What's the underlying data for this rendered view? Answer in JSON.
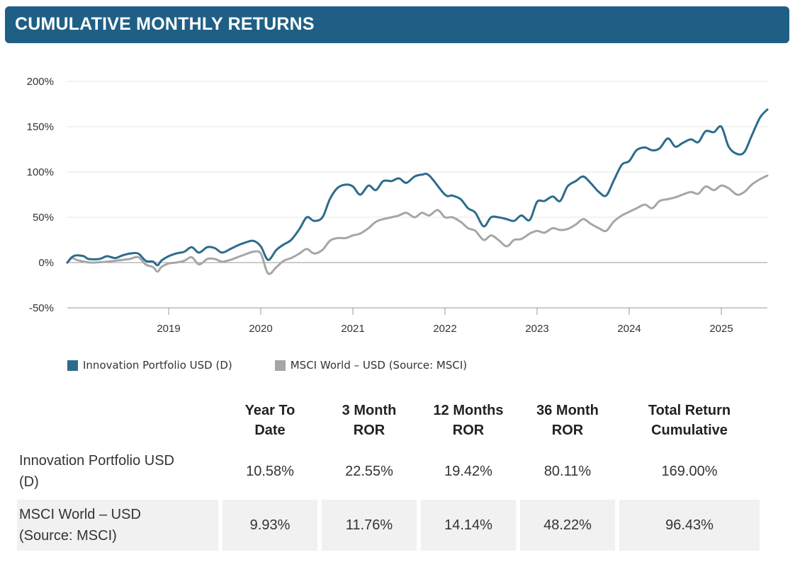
{
  "header": {
    "title": "CUMULATIVE MONTHLY RETURNS"
  },
  "colors": {
    "banner": "#1f5f85",
    "series_portfolio": "#2d6b8c",
    "series_benchmark": "#a6a6a6",
    "row_shade": "#f1f1f1"
  },
  "chart_data": {
    "type": "line",
    "title": "",
    "xlabel": "",
    "ylabel": "",
    "ylim": [
      -50,
      200
    ],
    "yticks": [
      -50,
      0,
      50,
      100,
      150,
      200
    ],
    "ytick_labels": [
      "-50%",
      "0%",
      "50%",
      "100%",
      "150%",
      "200%"
    ],
    "xlim": [
      2017.9,
      2025.5
    ],
    "xticks": [
      2019,
      2020,
      2021,
      2022,
      2023,
      2024,
      2025
    ],
    "xtick_labels": [
      "2019",
      "2020",
      "2021",
      "2022",
      "2023",
      "2024",
      "2025"
    ],
    "grid": "horizontal",
    "legend_position": "bottom-left",
    "series": [
      {
        "name": "Innovation Portfolio USD (D)",
        "color": "#2d6b8c",
        "points": [
          [
            2017.9,
            0
          ],
          [
            2017.95,
            6
          ],
          [
            2018.0,
            8
          ],
          [
            2018.08,
            7
          ],
          [
            2018.13,
            4
          ],
          [
            2018.25,
            4
          ],
          [
            2018.33,
            7
          ],
          [
            2018.42,
            5
          ],
          [
            2018.5,
            8
          ],
          [
            2018.58,
            10
          ],
          [
            2018.67,
            10
          ],
          [
            2018.75,
            2
          ],
          [
            2018.83,
            1
          ],
          [
            2018.88,
            -3
          ],
          [
            2018.92,
            2
          ],
          [
            2019.0,
            7
          ],
          [
            2019.08,
            10
          ],
          [
            2019.17,
            12
          ],
          [
            2019.25,
            17
          ],
          [
            2019.33,
            11
          ],
          [
            2019.42,
            17
          ],
          [
            2019.5,
            16
          ],
          [
            2019.58,
            11
          ],
          [
            2019.67,
            15
          ],
          [
            2019.75,
            19
          ],
          [
            2019.83,
            22
          ],
          [
            2019.92,
            24
          ],
          [
            2020.0,
            18
          ],
          [
            2020.08,
            3
          ],
          [
            2020.17,
            14
          ],
          [
            2020.25,
            20
          ],
          [
            2020.33,
            25
          ],
          [
            2020.42,
            37
          ],
          [
            2020.5,
            50
          ],
          [
            2020.58,
            46
          ],
          [
            2020.67,
            50
          ],
          [
            2020.75,
            70
          ],
          [
            2020.83,
            82
          ],
          [
            2020.92,
            86
          ],
          [
            2021.0,
            84
          ],
          [
            2021.08,
            75
          ],
          [
            2021.17,
            85
          ],
          [
            2021.25,
            80
          ],
          [
            2021.33,
            90
          ],
          [
            2021.42,
            90
          ],
          [
            2021.5,
            93
          ],
          [
            2021.58,
            88
          ],
          [
            2021.67,
            95
          ],
          [
            2021.75,
            97
          ],
          [
            2021.83,
            96
          ],
          [
            2022.0,
            75
          ],
          [
            2022.08,
            74
          ],
          [
            2022.17,
            70
          ],
          [
            2022.25,
            60
          ],
          [
            2022.33,
            55
          ],
          [
            2022.42,
            40
          ],
          [
            2022.5,
            50
          ],
          [
            2022.58,
            50
          ],
          [
            2022.67,
            48
          ],
          [
            2022.75,
            46
          ],
          [
            2022.83,
            52
          ],
          [
            2022.92,
            47
          ],
          [
            2023.0,
            67
          ],
          [
            2023.08,
            68
          ],
          [
            2023.17,
            73
          ],
          [
            2023.25,
            68
          ],
          [
            2023.33,
            84
          ],
          [
            2023.42,
            90
          ],
          [
            2023.5,
            95
          ],
          [
            2023.58,
            88
          ],
          [
            2023.67,
            78
          ],
          [
            2023.75,
            74
          ],
          [
            2023.83,
            90
          ],
          [
            2023.92,
            108
          ],
          [
            2024.0,
            112
          ],
          [
            2024.08,
            124
          ],
          [
            2024.17,
            127
          ],
          [
            2024.25,
            124
          ],
          [
            2024.33,
            126
          ],
          [
            2024.42,
            137
          ],
          [
            2024.5,
            128
          ],
          [
            2024.58,
            132
          ],
          [
            2024.67,
            136
          ],
          [
            2024.75,
            133
          ],
          [
            2024.83,
            145
          ],
          [
            2024.92,
            144
          ],
          [
            2025.0,
            150
          ],
          [
            2025.08,
            128
          ],
          [
            2025.17,
            120
          ],
          [
            2025.25,
            122
          ],
          [
            2025.33,
            140
          ],
          [
            2025.42,
            160
          ],
          [
            2025.5,
            169
          ]
        ]
      },
      {
        "name": "MSCI World – USD (Source: MSCI)",
        "color": "#a6a6a6",
        "points": [
          [
            2017.9,
            0
          ],
          [
            2017.95,
            5
          ],
          [
            2018.0,
            3
          ],
          [
            2018.08,
            1
          ],
          [
            2018.17,
            0
          ],
          [
            2018.33,
            1
          ],
          [
            2018.42,
            2
          ],
          [
            2018.5,
            3
          ],
          [
            2018.58,
            4
          ],
          [
            2018.67,
            6
          ],
          [
            2018.75,
            -2
          ],
          [
            2018.83,
            -5
          ],
          [
            2018.88,
            -10
          ],
          [
            2018.92,
            -5
          ],
          [
            2019.0,
            -1
          ],
          [
            2019.08,
            0
          ],
          [
            2019.17,
            2
          ],
          [
            2019.25,
            6
          ],
          [
            2019.33,
            -2
          ],
          [
            2019.42,
            4
          ],
          [
            2019.5,
            4
          ],
          [
            2019.58,
            1
          ],
          [
            2019.67,
            3
          ],
          [
            2019.75,
            6
          ],
          [
            2019.83,
            9
          ],
          [
            2019.92,
            12
          ],
          [
            2020.0,
            10
          ],
          [
            2020.08,
            -12
          ],
          [
            2020.17,
            -5
          ],
          [
            2020.25,
            2
          ],
          [
            2020.33,
            5
          ],
          [
            2020.42,
            10
          ],
          [
            2020.5,
            15
          ],
          [
            2020.58,
            10
          ],
          [
            2020.67,
            14
          ],
          [
            2020.75,
            24
          ],
          [
            2020.83,
            27
          ],
          [
            2020.92,
            27
          ],
          [
            2021.0,
            30
          ],
          [
            2021.08,
            32
          ],
          [
            2021.17,
            38
          ],
          [
            2021.25,
            45
          ],
          [
            2021.33,
            48
          ],
          [
            2021.42,
            50
          ],
          [
            2021.5,
            52
          ],
          [
            2021.58,
            55
          ],
          [
            2021.67,
            50
          ],
          [
            2021.75,
            55
          ],
          [
            2021.83,
            52
          ],
          [
            2021.92,
            58
          ],
          [
            2022.0,
            50
          ],
          [
            2022.08,
            50
          ],
          [
            2022.17,
            45
          ],
          [
            2022.25,
            38
          ],
          [
            2022.33,
            35
          ],
          [
            2022.42,
            25
          ],
          [
            2022.5,
            30
          ],
          [
            2022.58,
            25
          ],
          [
            2022.67,
            18
          ],
          [
            2022.75,
            25
          ],
          [
            2022.83,
            26
          ],
          [
            2022.92,
            32
          ],
          [
            2023.0,
            35
          ],
          [
            2023.08,
            33
          ],
          [
            2023.17,
            38
          ],
          [
            2023.25,
            36
          ],
          [
            2023.33,
            37
          ],
          [
            2023.42,
            42
          ],
          [
            2023.5,
            48
          ],
          [
            2023.58,
            43
          ],
          [
            2023.67,
            38
          ],
          [
            2023.75,
            35
          ],
          [
            2023.83,
            45
          ],
          [
            2023.92,
            52
          ],
          [
            2024.0,
            56
          ],
          [
            2024.08,
            60
          ],
          [
            2024.17,
            64
          ],
          [
            2024.25,
            60
          ],
          [
            2024.33,
            68
          ],
          [
            2024.42,
            70
          ],
          [
            2024.5,
            72
          ],
          [
            2024.58,
            75
          ],
          [
            2024.67,
            78
          ],
          [
            2024.75,
            76
          ],
          [
            2024.83,
            84
          ],
          [
            2024.92,
            80
          ],
          [
            2025.0,
            85
          ],
          [
            2025.08,
            82
          ],
          [
            2025.17,
            75
          ],
          [
            2025.25,
            78
          ],
          [
            2025.33,
            86
          ],
          [
            2025.42,
            92
          ],
          [
            2025.5,
            96
          ]
        ]
      }
    ]
  },
  "table": {
    "headers": [
      {
        "line1": "Year To",
        "line2": "Date"
      },
      {
        "line1": "3 Month",
        "line2": "ROR"
      },
      {
        "line1": "12 Months",
        "line2": "ROR"
      },
      {
        "line1": "36 Month",
        "line2": "ROR"
      },
      {
        "line1": "Total Return",
        "line2": "Cumulative"
      }
    ],
    "rows": [
      {
        "label_line1": "Innovation Portfolio USD",
        "label_line2": "(D)",
        "values": [
          "10.58%",
          "22.55%",
          "19.42%",
          "80.11%",
          "169.00%"
        ]
      },
      {
        "label_line1": "MSCI World – USD",
        "label_line2": "(Source: MSCI)",
        "values": [
          "9.93%",
          "11.76%",
          "14.14%",
          "48.22%",
          "96.43%"
        ]
      }
    ]
  }
}
